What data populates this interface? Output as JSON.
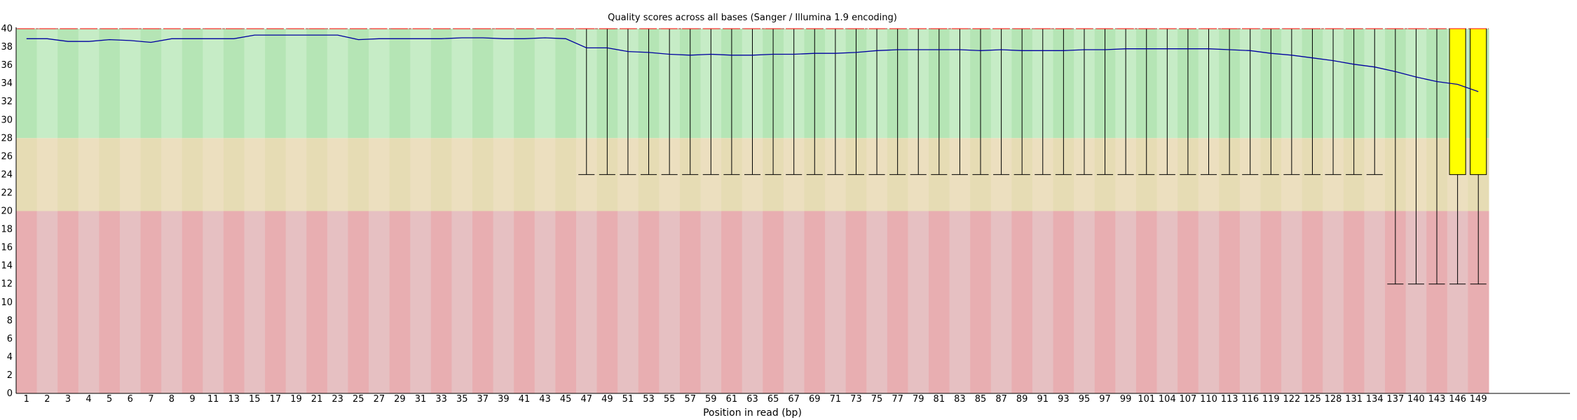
{
  "chart_data": {
    "type": "box",
    "title": "Quality scores across all bases (Sanger / Illumina 1.9 encoding)",
    "xlabel": "Position in read (bp)",
    "ylabel": "",
    "ylim": [
      0,
      40
    ],
    "y_ticks": [
      0,
      2,
      4,
      6,
      8,
      10,
      12,
      14,
      16,
      18,
      20,
      22,
      24,
      26,
      28,
      30,
      32,
      34,
      36,
      38,
      40
    ],
    "categories": [
      "1",
      "2",
      "3",
      "4",
      "5",
      "6",
      "7",
      "8",
      "9",
      "11",
      "13",
      "15",
      "17",
      "19",
      "21",
      "23",
      "25",
      "27",
      "29",
      "31",
      "33",
      "35",
      "37",
      "39",
      "41",
      "43",
      "45",
      "47",
      "49",
      "51",
      "53",
      "55",
      "57",
      "59",
      "61",
      "63",
      "65",
      "67",
      "69",
      "71",
      "73",
      "75",
      "77",
      "79",
      "81",
      "83",
      "85",
      "87",
      "89",
      "91",
      "93",
      "95",
      "97",
      "99",
      "101",
      "104",
      "107",
      "110",
      "113",
      "116",
      "119",
      "122",
      "125",
      "128",
      "131",
      "134",
      "137",
      "140",
      "143",
      "146",
      "149"
    ],
    "bands": [
      {
        "from": 28,
        "to": 40,
        "colors": [
          "#b5e5b5",
          "#c6ecc6"
        ]
      },
      {
        "from": 20,
        "to": 28,
        "colors": [
          "#e6dcb4",
          "#ecdfbf"
        ]
      },
      {
        "from": 0,
        "to": 20,
        "colors": [
          "#e8aeb1",
          "#e6c0c2"
        ]
      }
    ],
    "series": [
      {
        "name": "Mean",
        "color": "#0000a0",
        "values": [
          38.9,
          38.9,
          38.6,
          38.6,
          38.8,
          38.7,
          38.5,
          38.9,
          38.9,
          38.9,
          38.9,
          39.3,
          39.3,
          39.3,
          39.3,
          39.3,
          38.8,
          38.9,
          38.9,
          38.9,
          38.9,
          39.0,
          39.0,
          38.9,
          38.9,
          39.0,
          38.9,
          37.9,
          37.9,
          37.5,
          37.4,
          37.2,
          37.1,
          37.2,
          37.1,
          37.1,
          37.2,
          37.2,
          37.3,
          37.3,
          37.4,
          37.6,
          37.7,
          37.7,
          37.7,
          37.7,
          37.6,
          37.7,
          37.6,
          37.6,
          37.6,
          37.7,
          37.7,
          37.8,
          37.8,
          37.8,
          37.8,
          37.8,
          37.7,
          37.6,
          37.3,
          37.1,
          36.8,
          36.5,
          36.1,
          35.8,
          35.3,
          34.7,
          34.2,
          33.9,
          33.1
        ]
      },
      {
        "name": "Median",
        "values": [
          40,
          40,
          40,
          40,
          40,
          40,
          40,
          40,
          40,
          40,
          40,
          40,
          40,
          40,
          40,
          40,
          40,
          40,
          40,
          40,
          40,
          40,
          40,
          40,
          40,
          40,
          40,
          40,
          40,
          40,
          40,
          40,
          40,
          40,
          40,
          40,
          40,
          40,
          40,
          40,
          40,
          40,
          40,
          40,
          40,
          40,
          40,
          40,
          40,
          40,
          40,
          40,
          40,
          40,
          40,
          40,
          40,
          40,
          40,
          40,
          40,
          40,
          40,
          40,
          40,
          40,
          40,
          40,
          40,
          40,
          40
        ]
      },
      {
        "name": "Lower quartile",
        "values": [
          40,
          40,
          40,
          40,
          40,
          40,
          40,
          40,
          40,
          40,
          40,
          40,
          40,
          40,
          40,
          40,
          40,
          40,
          40,
          40,
          40,
          40,
          40,
          40,
          40,
          40,
          40,
          40,
          40,
          40,
          40,
          40,
          40,
          40,
          40,
          40,
          40,
          40,
          40,
          40,
          40,
          40,
          40,
          40,
          40,
          40,
          40,
          40,
          40,
          40,
          40,
          40,
          40,
          40,
          40,
          40,
          40,
          40,
          40,
          40,
          40,
          40,
          40,
          40,
          40,
          40,
          40,
          40,
          40,
          24,
          24
        ]
      },
      {
        "name": "Upper quartile",
        "values": [
          40,
          40,
          40,
          40,
          40,
          40,
          40,
          40,
          40,
          40,
          40,
          40,
          40,
          40,
          40,
          40,
          40,
          40,
          40,
          40,
          40,
          40,
          40,
          40,
          40,
          40,
          40,
          40,
          40,
          40,
          40,
          40,
          40,
          40,
          40,
          40,
          40,
          40,
          40,
          40,
          40,
          40,
          40,
          40,
          40,
          40,
          40,
          40,
          40,
          40,
          40,
          40,
          40,
          40,
          40,
          40,
          40,
          40,
          40,
          40,
          40,
          40,
          40,
          40,
          40,
          40,
          40,
          40,
          40,
          40,
          40
        ]
      },
      {
        "name": "10th percentile",
        "values": [
          40,
          40,
          40,
          40,
          40,
          40,
          40,
          40,
          40,
          40,
          40,
          40,
          40,
          40,
          40,
          40,
          40,
          40,
          40,
          40,
          40,
          40,
          40,
          40,
          40,
          40,
          40,
          24,
          24,
          24,
          24,
          24,
          24,
          24,
          24,
          24,
          24,
          24,
          24,
          24,
          24,
          24,
          24,
          24,
          24,
          24,
          24,
          24,
          24,
          24,
          24,
          24,
          24,
          24,
          24,
          24,
          24,
          24,
          24,
          24,
          24,
          24,
          24,
          24,
          24,
          24,
          12,
          12,
          12,
          12,
          12
        ]
      },
      {
        "name": "90th percentile",
        "values": [
          40,
          40,
          40,
          40,
          40,
          40,
          40,
          40,
          40,
          40,
          40,
          40,
          40,
          40,
          40,
          40,
          40,
          40,
          40,
          40,
          40,
          40,
          40,
          40,
          40,
          40,
          40,
          40,
          40,
          40,
          40,
          40,
          40,
          40,
          40,
          40,
          40,
          40,
          40,
          40,
          40,
          40,
          40,
          40,
          40,
          40,
          40,
          40,
          40,
          40,
          40,
          40,
          40,
          40,
          40,
          40,
          40,
          40,
          40,
          40,
          40,
          40,
          40,
          40,
          40,
          40,
          40,
          40,
          40,
          40,
          40
        ]
      }
    ],
    "colors": {
      "box_fill": "#ffff00",
      "box_stroke": "#000000",
      "whisker": "#000000",
      "plot_border": "#c03030",
      "axis": "#000000"
    }
  }
}
